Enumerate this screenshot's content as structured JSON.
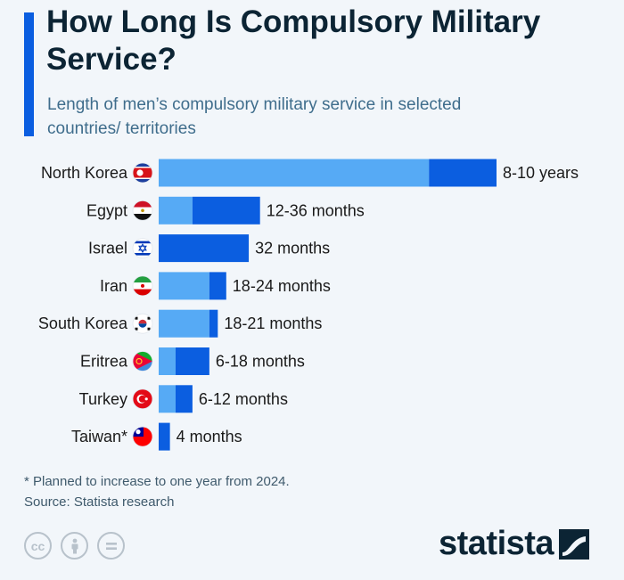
{
  "header": {
    "title": "How Long Is Compulsory Military Service?",
    "subtitle": "Length of men’s compulsory military service in selected countries/ territories"
  },
  "colors": {
    "min_segment": "#56aaf5",
    "range_segment": "#0b5ee0",
    "accent": "#0b5ee0",
    "text": "#0c2434"
  },
  "chart_data": {
    "type": "bar",
    "orientation": "horizontal",
    "stacked": true,
    "unit": "months",
    "categories": [
      "North Korea",
      "Egypt",
      "Israel",
      "Iran",
      "South Korea",
      "Eritrea",
      "Turkey",
      "Taiwan*"
    ],
    "series": [
      {
        "name": "Minimum length",
        "values": [
          96,
          12,
          0,
          18,
          18,
          6,
          6,
          0
        ]
      },
      {
        "name": "Additional to maximum",
        "values": [
          24,
          24,
          32,
          6,
          3,
          12,
          6,
          4
        ]
      }
    ],
    "value_labels": [
      "8-10 years",
      "12-36 months",
      "32 months",
      "18-24 months",
      "18-21 months",
      "6-18 months",
      "6-12 months",
      "4 months"
    ],
    "flags": [
      "flag-north-korea-icon",
      "flag-egypt-icon",
      "flag-israel-icon",
      "flag-iran-icon",
      "flag-south-korea-icon",
      "flag-eritrea-icon",
      "flag-turkey-icon",
      "flag-taiwan-icon"
    ],
    "xlim": [
      0,
      120
    ],
    "grid": false,
    "legend": "none"
  },
  "footer": {
    "footnote": "* Planned to increase to one year from 2024.",
    "source": "Source: Statista research",
    "icons": [
      "creative-commons-icon",
      "attribution-icon",
      "no-derivatives-icon"
    ],
    "logo": "statista"
  }
}
